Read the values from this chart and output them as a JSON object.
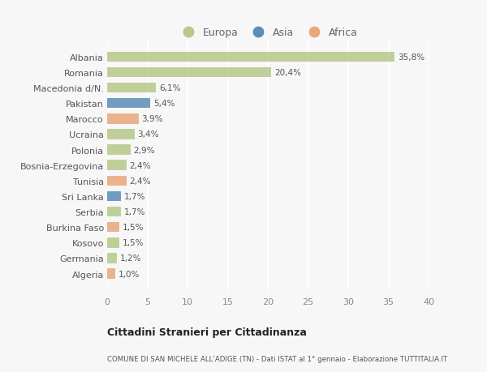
{
  "countries": [
    "Albania",
    "Romania",
    "Macedonia d/N.",
    "Pakistan",
    "Marocco",
    "Ucraina",
    "Polonia",
    "Bosnia-Erzegovina",
    "Tunisia",
    "Sri Lanka",
    "Serbia",
    "Burkina Faso",
    "Kosovo",
    "Germania",
    "Algeria"
  ],
  "values": [
    35.8,
    20.4,
    6.1,
    5.4,
    3.9,
    3.4,
    2.9,
    2.4,
    2.4,
    1.7,
    1.7,
    1.5,
    1.5,
    1.2,
    1.0
  ],
  "bar_colors": [
    "#b5c98a",
    "#b5c98a",
    "#b5c98a",
    "#5b8db8",
    "#e8a87c",
    "#b5c98a",
    "#b5c98a",
    "#b5c98a",
    "#e8a87c",
    "#5b8db8",
    "#b5c98a",
    "#e8a87c",
    "#b5c98a",
    "#b5c98a",
    "#e8a87c"
  ],
  "labels": [
    "35,8%",
    "20,4%",
    "6,1%",
    "5,4%",
    "3,9%",
    "3,4%",
    "2,9%",
    "2,4%",
    "2,4%",
    "1,7%",
    "1,7%",
    "1,5%",
    "1,5%",
    "1,2%",
    "1,0%"
  ],
  "title1": "Cittadini Stranieri per Cittadinanza",
  "title2": "COMUNE DI SAN MICHELE ALL'ADIGE (TN) - Dati ISTAT al 1° gennaio - Elaborazione TUTTITALIA.IT",
  "xlim": [
    0,
    40
  ],
  "xticks": [
    0,
    5,
    10,
    15,
    20,
    25,
    30,
    35,
    40
  ],
  "background_color": "#f7f7f7",
  "legend_labels": [
    "Europa",
    "Asia",
    "Africa"
  ],
  "legend_colors": [
    "#b5c98a",
    "#5b8db8",
    "#e8a87c"
  ]
}
